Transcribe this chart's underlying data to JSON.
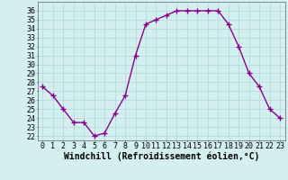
{
  "x": [
    0,
    1,
    2,
    3,
    4,
    5,
    6,
    7,
    8,
    9,
    10,
    11,
    12,
    13,
    14,
    15,
    16,
    17,
    18,
    19,
    20,
    21,
    22,
    23
  ],
  "y": [
    27.5,
    26.5,
    25.0,
    23.5,
    23.5,
    22.0,
    22.3,
    24.5,
    26.5,
    31.0,
    34.5,
    35.0,
    35.5,
    36.0,
    36.0,
    36.0,
    36.0,
    36.0,
    34.5,
    32.0,
    29.0,
    27.5,
    25.0,
    24.0
  ],
  "line_color": "#8b008b",
  "marker": "+",
  "markersize": 4,
  "linewidth": 1.0,
  "bg_color": "#d4efef",
  "grid_color": "#b0d8d8",
  "xlabel": "Windchill (Refroidissement éolien,°C)",
  "xlabel_fontsize": 7,
  "tick_fontsize": 6,
  "ylim": [
    21.5,
    37
  ],
  "xlim": [
    -0.5,
    23.5
  ],
  "yticks": [
    22,
    23,
    24,
    25,
    26,
    27,
    28,
    29,
    30,
    31,
    32,
    33,
    34,
    35,
    36
  ],
  "xticks": [
    0,
    1,
    2,
    3,
    4,
    5,
    6,
    7,
    8,
    9,
    10,
    11,
    12,
    13,
    14,
    15,
    16,
    17,
    18,
    19,
    20,
    21,
    22,
    23
  ]
}
